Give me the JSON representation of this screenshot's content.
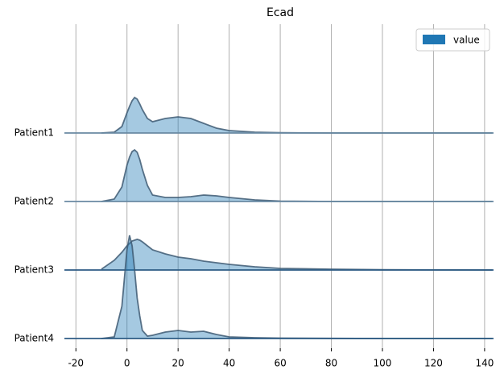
{
  "chart_data": {
    "type": "ridgeline",
    "title": "Ecad",
    "x": [
      -10,
      -5,
      -2,
      0,
      1,
      2,
      3,
      4,
      5,
      6,
      8,
      10,
      15,
      20,
      25,
      30,
      35,
      40,
      50,
      60,
      80,
      100,
      143
    ],
    "series": [
      {
        "name": "Patient1",
        "color": "#1f77b4",
        "values": [
          0,
          1,
          8,
          25,
          33,
          40,
          44,
          42,
          36,
          29,
          18,
          14,
          18,
          20,
          18,
          12,
          6,
          3,
          1,
          0.3,
          0,
          0,
          0
        ]
      },
      {
        "name": "Patient2",
        "color": "#1f77b4",
        "values": [
          0,
          3,
          18,
          45,
          55,
          62,
          64,
          61,
          52,
          40,
          20,
          8,
          5,
          5,
          6,
          8,
          7,
          5,
          2,
          0.5,
          0,
          0,
          0
        ]
      },
      {
        "name": "Patient3",
        "color": "#1f77b4",
        "values": [
          1,
          12,
          22,
          30,
          33,
          36,
          37,
          38,
          37,
          35,
          30,
          25,
          20,
          16,
          14,
          11,
          9,
          7,
          4,
          2,
          1,
          0.3,
          0
        ]
      },
      {
        "name": "Patient4",
        "color": "#1f77b4",
        "values": [
          0,
          2,
          40,
          110,
          128,
          115,
          85,
          50,
          28,
          10,
          3,
          4,
          8,
          10,
          8,
          9,
          5,
          2,
          1,
          0.5,
          0.2,
          0,
          0
        ]
      }
    ],
    "xlim": [
      -24.5,
      143.5
    ],
    "xticks": [
      -20,
      0,
      20,
      40,
      60,
      80,
      100,
      120,
      140
    ],
    "grid": true,
    "legend": {
      "label": "value",
      "position": "upper right"
    }
  }
}
